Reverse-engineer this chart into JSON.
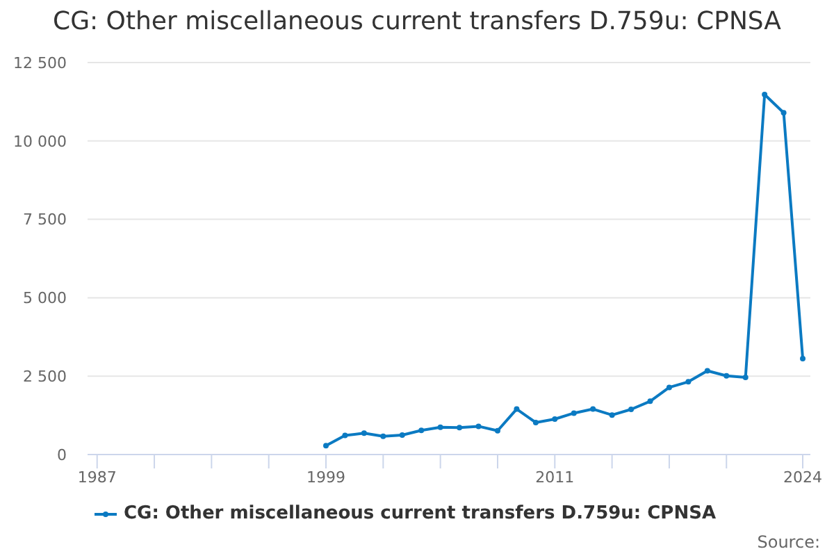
{
  "chart_data": {
    "type": "line",
    "title": "CG: Other miscellaneous current transfers D.759u: CPNSA",
    "x": [
      1999,
      2000,
      2001,
      2002,
      2003,
      2004,
      2005,
      2006,
      2007,
      2008,
      2009,
      2010,
      2011,
      2012,
      2013,
      2014,
      2015,
      2016,
      2017,
      2018,
      2019,
      2020,
      2021,
      2022,
      2023,
      2024
    ],
    "series": [
      {
        "name": "CG: Other miscellaneous current transfers D.759u: CPNSA",
        "color": "#0b7ac2",
        "values": [
          280,
          610,
          680,
          580,
          620,
          770,
          870,
          860,
          900,
          760,
          1450,
          1020,
          1130,
          1320,
          1450,
          1260,
          1440,
          1700,
          2140,
          2320,
          2670,
          2510,
          2460,
          11480,
          10900,
          3060
        ]
      }
    ],
    "xlim": [
      1986.5,
      2024.4
    ],
    "xticks": [
      1987,
      {
        "value": 1990,
        "label": null
      },
      {
        "value": 1993,
        "label": null
      },
      {
        "value": 1996,
        "label": null
      },
      1999,
      {
        "value": 2002,
        "label": null
      },
      {
        "value": 2005,
        "label": null
      },
      {
        "value": 2008,
        "label": null
      },
      2011,
      {
        "value": 2014,
        "label": null
      },
      {
        "value": 2017,
        "label": null
      },
      {
        "value": 2020,
        "label": null
      },
      2024
    ],
    "ylim": [
      0,
      12500
    ],
    "yticks": [
      0,
      {
        "value": 2500,
        "label": "2 500"
      },
      {
        "value": 5000,
        "label": "5 000"
      },
      {
        "value": 7500,
        "label": "7 500"
      },
      {
        "value": 10000,
        "label": "10 000"
      },
      {
        "value": 12500,
        "label": "12 500"
      }
    ],
    "grid": "y",
    "legend": "bottom",
    "marker": "circle",
    "line_style": "solid",
    "annotations": [
      "Source:"
    ]
  }
}
